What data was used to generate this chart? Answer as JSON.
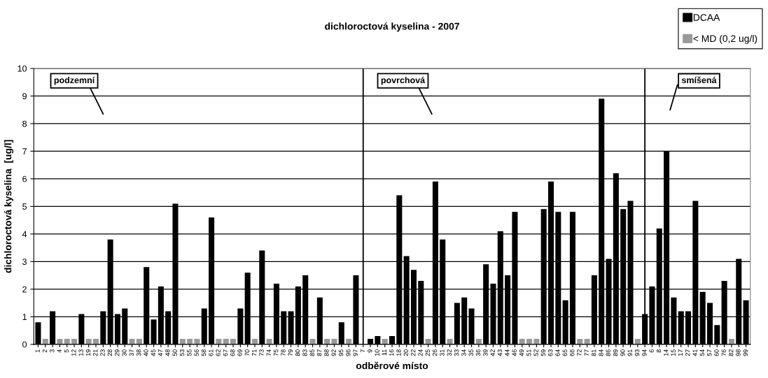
{
  "chart_data": {
    "type": "bar",
    "title": "dichloroctová kyselina - 2007",
    "xlabel": "odběrové místo",
    "ylabel": "dichloroctová kyselina  [ug/l]",
    "categories": [
      "1",
      "2",
      "3",
      "4",
      "5",
      "12",
      "13",
      "19",
      "21",
      "23",
      "28",
      "29",
      "30",
      "37",
      "38",
      "40",
      "45",
      "47",
      "48",
      "50",
      "53",
      "55",
      "56",
      "58",
      "61",
      "62",
      "67",
      "68",
      "69",
      "70",
      "71",
      "73",
      "74",
      "75",
      "78",
      "79",
      "80",
      "83",
      "85",
      "87",
      "88",
      "92",
      "95",
      "96",
      "97",
      "7",
      "9",
      "10",
      "11",
      "16",
      "18",
      "20",
      "22",
      "24",
      "25",
      "26",
      "31",
      "32",
      "33",
      "34",
      "35",
      "36",
      "39",
      "42",
      "43",
      "44",
      "46",
      "49",
      "51",
      "52",
      "59",
      "63",
      "64",
      "65",
      "66",
      "72",
      "77",
      "81",
      "84",
      "86",
      "89",
      "90",
      "91",
      "93",
      "94",
      "6",
      "8",
      "14",
      "15",
      "17",
      "27",
      "41",
      "54",
      "57",
      "60",
      "76",
      "82",
      "98",
      "99"
    ],
    "series": [
      {
        "name": "DCAA",
        "color": "#000000",
        "values": [
          0.8,
          null,
          1.2,
          null,
          null,
          null,
          1.1,
          null,
          null,
          1.2,
          3.8,
          1.1,
          1.3,
          null,
          null,
          2.8,
          0.9,
          2.1,
          1.2,
          5.1,
          null,
          null,
          null,
          1.3,
          4.6,
          null,
          null,
          null,
          1.3,
          2.6,
          null,
          3.4,
          null,
          2.2,
          1.2,
          1.2,
          2.1,
          2.5,
          null,
          1.7,
          null,
          null,
          0.8,
          null,
          2.5,
          null,
          0.2,
          0.3,
          null,
          0.3,
          5.4,
          3.2,
          2.7,
          2.3,
          null,
          5.9,
          3.8,
          null,
          1.5,
          1.7,
          1.3,
          null,
          2.9,
          2.2,
          4.1,
          2.5,
          4.8,
          null,
          null,
          null,
          4.9,
          5.9,
          4.8,
          1.6,
          4.8,
          null,
          null,
          2.5,
          8.9,
          3.1,
          6.2,
          4.9,
          5.2,
          null,
          1.1,
          2.1,
          4.2,
          7.0,
          1.7,
          1.2,
          1.2,
          5.2,
          1.9,
          1.5,
          0.7,
          2.3,
          null,
          3.1,
          1.6
        ]
      },
      {
        "name": "< MD (0,2 ug/l)",
        "color": "#999999",
        "values": [
          null,
          0.2,
          null,
          0.2,
          0.2,
          0.2,
          null,
          0.2,
          0.2,
          null,
          null,
          null,
          null,
          0.2,
          0.2,
          null,
          null,
          null,
          null,
          null,
          0.2,
          0.2,
          0.2,
          null,
          null,
          0.2,
          0.2,
          0.2,
          null,
          null,
          0.2,
          null,
          0.2,
          null,
          null,
          null,
          null,
          null,
          0.2,
          null,
          0.2,
          0.2,
          null,
          0.2,
          null,
          null,
          null,
          null,
          0.2,
          null,
          null,
          null,
          null,
          null,
          0.2,
          null,
          null,
          0.2,
          null,
          null,
          null,
          0.2,
          null,
          null,
          null,
          null,
          null,
          0.2,
          0.2,
          0.2,
          null,
          null,
          null,
          null,
          null,
          0.2,
          0.2,
          null,
          null,
          null,
          null,
          null,
          null,
          0.2,
          null,
          null,
          null,
          null,
          null,
          null,
          null,
          null,
          null,
          null,
          null,
          null,
          0.2,
          null,
          null
        ]
      }
    ],
    "ylim": [
      0,
      10
    ],
    "yticks": [
      0,
      1,
      2,
      3,
      4,
      5,
      6,
      7,
      8,
      9,
      10
    ],
    "grid": "y",
    "legend": "top right",
    "ref_lines": [
      {
        "axis": "x",
        "value": "7",
        "color": "#000000"
      },
      {
        "axis": "x",
        "value": "94",
        "color": "#000000"
      }
    ],
    "annotations": [
      "podzemní",
      "povrchová",
      "smíšená"
    ]
  }
}
